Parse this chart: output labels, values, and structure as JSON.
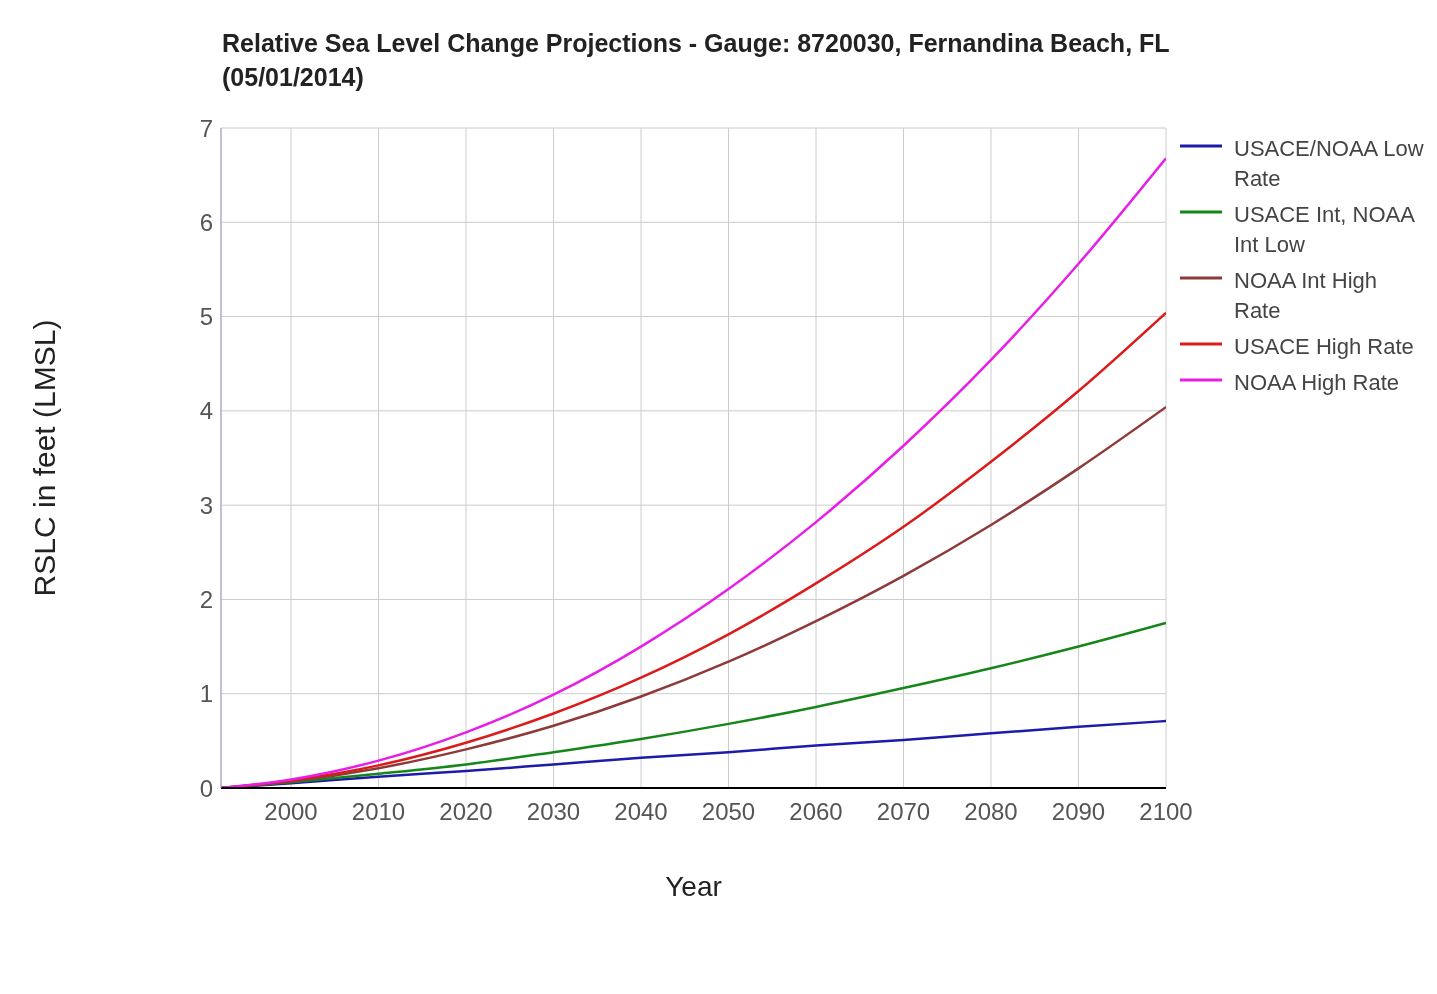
{
  "chart_data": {
    "type": "line",
    "title": "Relative Sea Level Change Projections - Gauge: 8720030, Fernandina Beach, FL (05/01/2014)",
    "xlabel": "Year",
    "ylabel": "RSLC in feet (LMSL)",
    "x": [
      1992,
      2000,
      2010,
      2020,
      2030,
      2040,
      2050,
      2060,
      2070,
      2080,
      2090,
      2100
    ],
    "series": [
      {
        "name": "USACE/NOAA Low Rate",
        "color": "#1c1ca8",
        "values": [
          0,
          0.05,
          0.12,
          0.18,
          0.25,
          0.32,
          0.38,
          0.45,
          0.51,
          0.58,
          0.65,
          0.71
        ]
      },
      {
        "name": "USACE Int, NOAA Int Low",
        "color": "#16861a",
        "values": [
          0,
          0.06,
          0.15,
          0.25,
          0.38,
          0.52,
          0.68,
          0.86,
          1.06,
          1.27,
          1.5,
          1.75
        ]
      },
      {
        "name": "NOAA Int High Rate",
        "color": "#8e3a3a",
        "values": [
          0,
          0.07,
          0.21,
          0.41,
          0.66,
          0.97,
          1.34,
          1.77,
          2.25,
          2.79,
          3.39,
          4.04
        ]
      },
      {
        "name": "USACE High Rate",
        "color": "#dc1a1a",
        "values": [
          0,
          0.08,
          0.24,
          0.48,
          0.79,
          1.17,
          1.63,
          2.17,
          2.77,
          3.46,
          4.21,
          5.04
        ]
      },
      {
        "name": "NOAA High Rate",
        "color": "#e81ee8",
        "values": [
          0,
          0.09,
          0.29,
          0.59,
          0.99,
          1.5,
          2.11,
          2.82,
          3.63,
          4.54,
          5.56,
          6.68
        ]
      }
    ],
    "xlim": [
      1992,
      2100
    ],
    "xticks": [
      2000,
      2010,
      2020,
      2030,
      2040,
      2050,
      2060,
      2070,
      2080,
      2090,
      2100
    ],
    "ylim": [
      0,
      7
    ],
    "yticks": [
      0,
      1,
      2,
      3,
      4,
      5,
      6,
      7
    ],
    "grid": true,
    "legend": "top right",
    "marker": "none",
    "line_style": "solid"
  }
}
